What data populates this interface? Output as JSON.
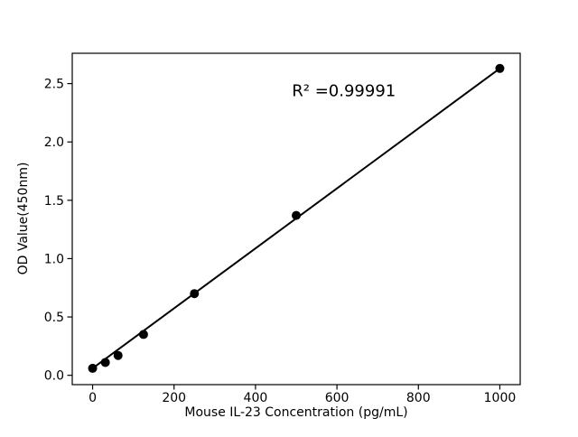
{
  "figure": {
    "background": "#ffffff"
  },
  "chart_data": {
    "type": "scatter",
    "title": "",
    "xlabel": "Mouse IL-23 Concentration (pg/mL)",
    "ylabel": "OD Value(450nm)",
    "annotation": {
      "text": "R² =0.99991",
      "x": 617,
      "y": 2.44
    },
    "x": [
      0,
      31.25,
      62.5,
      125,
      250,
      500,
      1000
    ],
    "y": [
      0.06,
      0.11,
      0.17,
      0.35,
      0.7,
      1.37,
      2.63
    ],
    "fit_line": {
      "x": [
        0,
        1000
      ],
      "y": [
        0.06,
        2.63
      ]
    },
    "xlim": [
      -50,
      1050
    ],
    "ylim": [
      -0.08,
      2.76
    ],
    "xticks": {
      "values": [
        0,
        200,
        400,
        600,
        800,
        1000
      ],
      "labels": [
        "0",
        "200",
        "400",
        "600",
        "800",
        "1000"
      ]
    },
    "yticks": {
      "values": [
        0,
        0.5,
        1.0,
        1.5,
        2.0,
        2.5
      ],
      "labels": [
        "0.0",
        "0.5",
        "1.0",
        "1.5",
        "2.0",
        "2.5"
      ]
    },
    "grid": false,
    "line_color": "#000000",
    "marker_color": "#000000",
    "axis_color": "#000000"
  }
}
